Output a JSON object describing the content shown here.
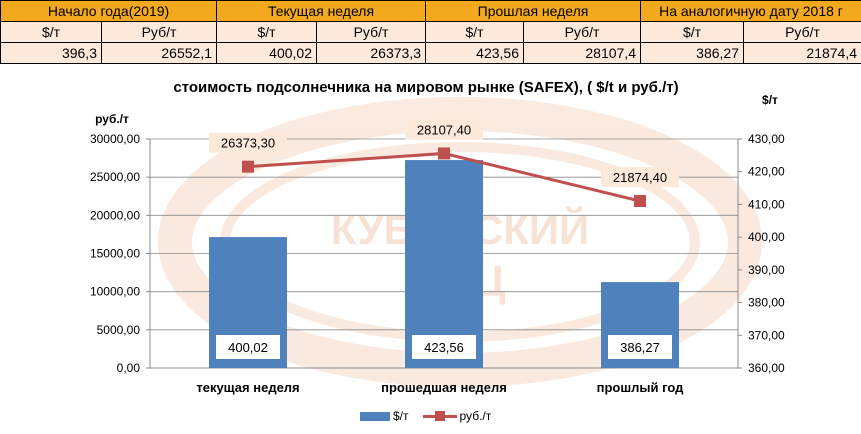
{
  "table": {
    "headers": [
      "Начало года(2019)",
      "Текущая неделя",
      "Прошлая неделя",
      "На аналогичную дату 2018 г"
    ],
    "units": [
      "$/т",
      "Руб/т",
      "$/т",
      "Руб/т",
      "$/т",
      "Руб/т",
      "$/т",
      "Руб/т"
    ],
    "values": [
      "396,3",
      "26552,1",
      "400,02",
      "26373,3",
      "423,56",
      "28107,4",
      "386,27",
      "21874,4"
    ]
  },
  "watermark": {
    "line1": "КУБАНСКИЙ",
    "line2": "ИКЦ"
  },
  "chart_data": {
    "type": "bar",
    "title": "стоимость подсолнечника на мировом рынке (SAFEX), ( $/t и руб./т)",
    "categories": [
      "текущая неделя",
      "прошедшая неделя",
      "прошлый год"
    ],
    "ylabel_left": "руб./т",
    "ylabel_right": "$/т",
    "ylim_left": [
      0,
      30000
    ],
    "ylim_right": [
      360,
      430
    ],
    "yticks_left": [
      "0,00",
      "5000,00",
      "10000,00",
      "15000,00",
      "20000,00",
      "25000,00",
      "30000,00"
    ],
    "yticks_right": [
      "360,00",
      "370,00",
      "380,00",
      "390,00",
      "400,00",
      "410,00",
      "420,00",
      "430,00"
    ],
    "grid": true,
    "legend_position": "bottom",
    "series": [
      {
        "name": "$/т",
        "type": "bar",
        "axis": "right",
        "color": "#4f81bd",
        "values": [
          400.02,
          423.56,
          386.27
        ],
        "labels": [
          "400,02",
          "423,56",
          "386,27"
        ]
      },
      {
        "name": "руб./т",
        "type": "line",
        "axis": "left",
        "color": "#c0504d",
        "values": [
          26373.3,
          28107.4,
          21874.4
        ],
        "labels": [
          "26373,30",
          "28107,40",
          "21874,40"
        ]
      }
    ]
  }
}
